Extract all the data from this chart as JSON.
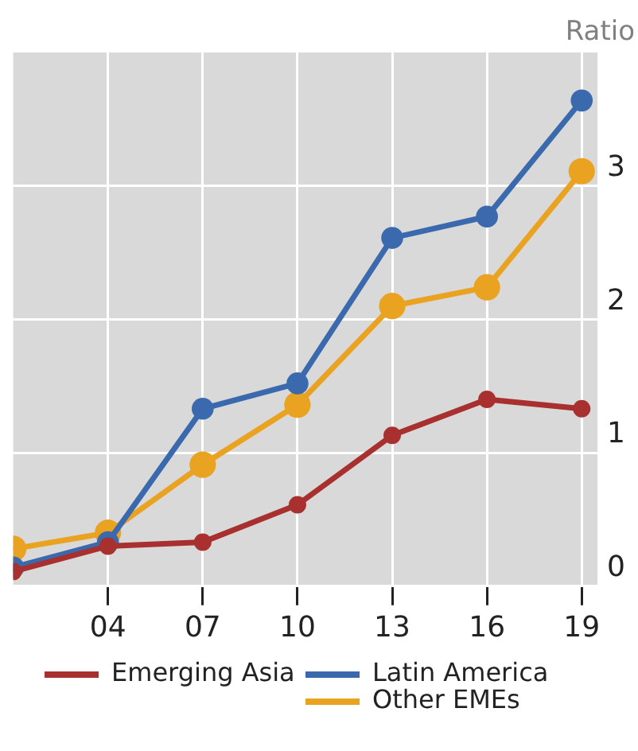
{
  "chart_data": {
    "type": "line",
    "ylabel": "Ratio",
    "x": [
      2001,
      2004,
      2007,
      2010,
      2013,
      2016,
      2019
    ],
    "xlim": [
      2001,
      2019.5
    ],
    "xticks": [
      {
        "value": 2004,
        "label": "04"
      },
      {
        "value": 2007,
        "label": "07"
      },
      {
        "value": 2010,
        "label": "10"
      },
      {
        "value": 2013,
        "label": "13"
      },
      {
        "value": 2016,
        "label": "16"
      },
      {
        "value": 2019,
        "label": "19"
      }
    ],
    "ylim": [
      0,
      4
    ],
    "yticks": [
      0,
      1,
      2,
      3
    ],
    "series": [
      {
        "name": "Emerging Asia",
        "color": "#a8302f",
        "values": [
          0.11,
          0.3,
          0.33,
          0.61,
          1.13,
          1.4,
          1.33
        ]
      },
      {
        "name": "Latin America",
        "color": "#3a6aad",
        "values": [
          0.14,
          0.33,
          1.33,
          1.52,
          2.61,
          2.77,
          3.64
        ]
      },
      {
        "name": "Other EMEs",
        "color": "#eaa221",
        "values": [
          0.28,
          0.4,
          0.91,
          1.36,
          2.1,
          2.24,
          3.11
        ]
      }
    ],
    "grid": true,
    "legend": "bottom",
    "marker": "circle",
    "line_style": "solid"
  }
}
